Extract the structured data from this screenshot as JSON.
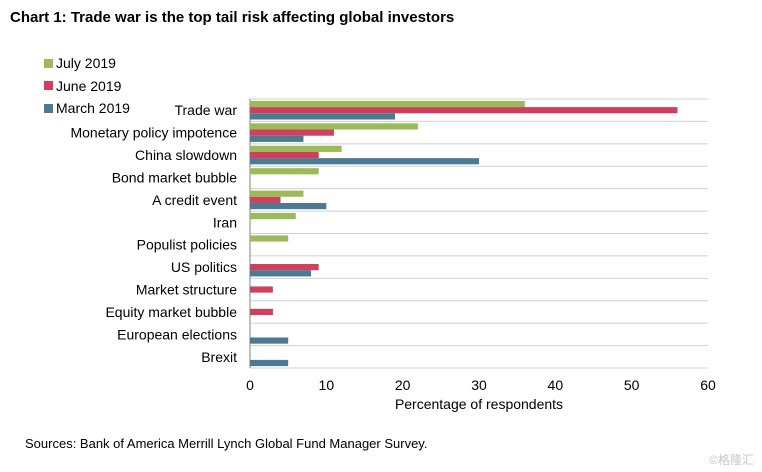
{
  "chart_data": {
    "type": "bar",
    "orientation": "horizontal",
    "title": "Chart 1: Trade war is the top tail risk affecting global investors",
    "xlabel": "Percentage of respondents",
    "ylabel": "",
    "xlim": [
      0,
      60
    ],
    "xticks": [
      0,
      10,
      20,
      30,
      40,
      50,
      60
    ],
    "categories": [
      "Trade war",
      "Monetary policy impotence",
      "China slowdown",
      "Bond market bubble",
      "A credit event",
      "Iran",
      "Populist policies",
      "US politics",
      "Market structure",
      "Equity market bubble",
      "European elections",
      "Brexit"
    ],
    "series": [
      {
        "name": "July 2019",
        "color": "#9bbb59",
        "values": [
          36,
          22,
          12,
          9,
          7,
          6,
          5,
          null,
          null,
          null,
          null,
          null
        ]
      },
      {
        "name": "June 2019",
        "color": "#d0405d",
        "values": [
          56,
          11,
          9,
          null,
          4,
          null,
          null,
          9,
          3,
          3,
          null,
          null
        ]
      },
      {
        "name": "March 2019",
        "color": "#4b7a92",
        "values": [
          19,
          7,
          30,
          null,
          10,
          null,
          null,
          8,
          null,
          null,
          5,
          5
        ]
      }
    ],
    "legend": "top-left",
    "grid": "horizontal-category-lines"
  },
  "source_note": "Sources: Bank of America Merrill Lynch Global Fund Manager Survey.",
  "watermark": "©格隆汇"
}
